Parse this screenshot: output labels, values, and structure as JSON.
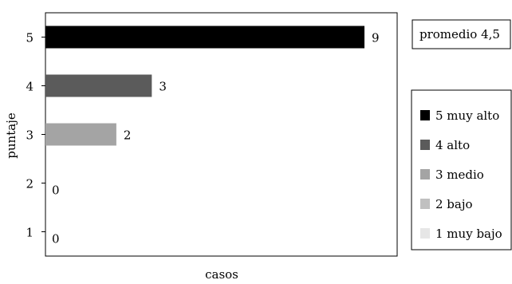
{
  "chart_data": {
    "type": "bar",
    "orientation": "horizontal",
    "categories": [
      "1",
      "2",
      "3",
      "4",
      "5"
    ],
    "values": [
      0,
      0,
      2,
      3,
      9
    ],
    "bar_colors": [
      "#e6e6e6",
      "#c0c0c0",
      "#a4a4a4",
      "#5b5b5b",
      "#000000"
    ],
    "xlabel": "casos",
    "ylabel": "puntaje",
    "xlim": [
      0,
      10
    ],
    "grid": false,
    "annotation": "promedio 4,5",
    "legend": {
      "position": "right",
      "entries": [
        {
          "label": "5 muy alto",
          "color": "#000000"
        },
        {
          "label": "4 alto",
          "color": "#5b5b5b"
        },
        {
          "label": "3 medio",
          "color": "#a4a4a4"
        },
        {
          "label": "2 bajo",
          "color": "#c0c0c0"
        },
        {
          "label": "1 muy bajo",
          "color": "#e6e6e6"
        }
      ]
    }
  }
}
